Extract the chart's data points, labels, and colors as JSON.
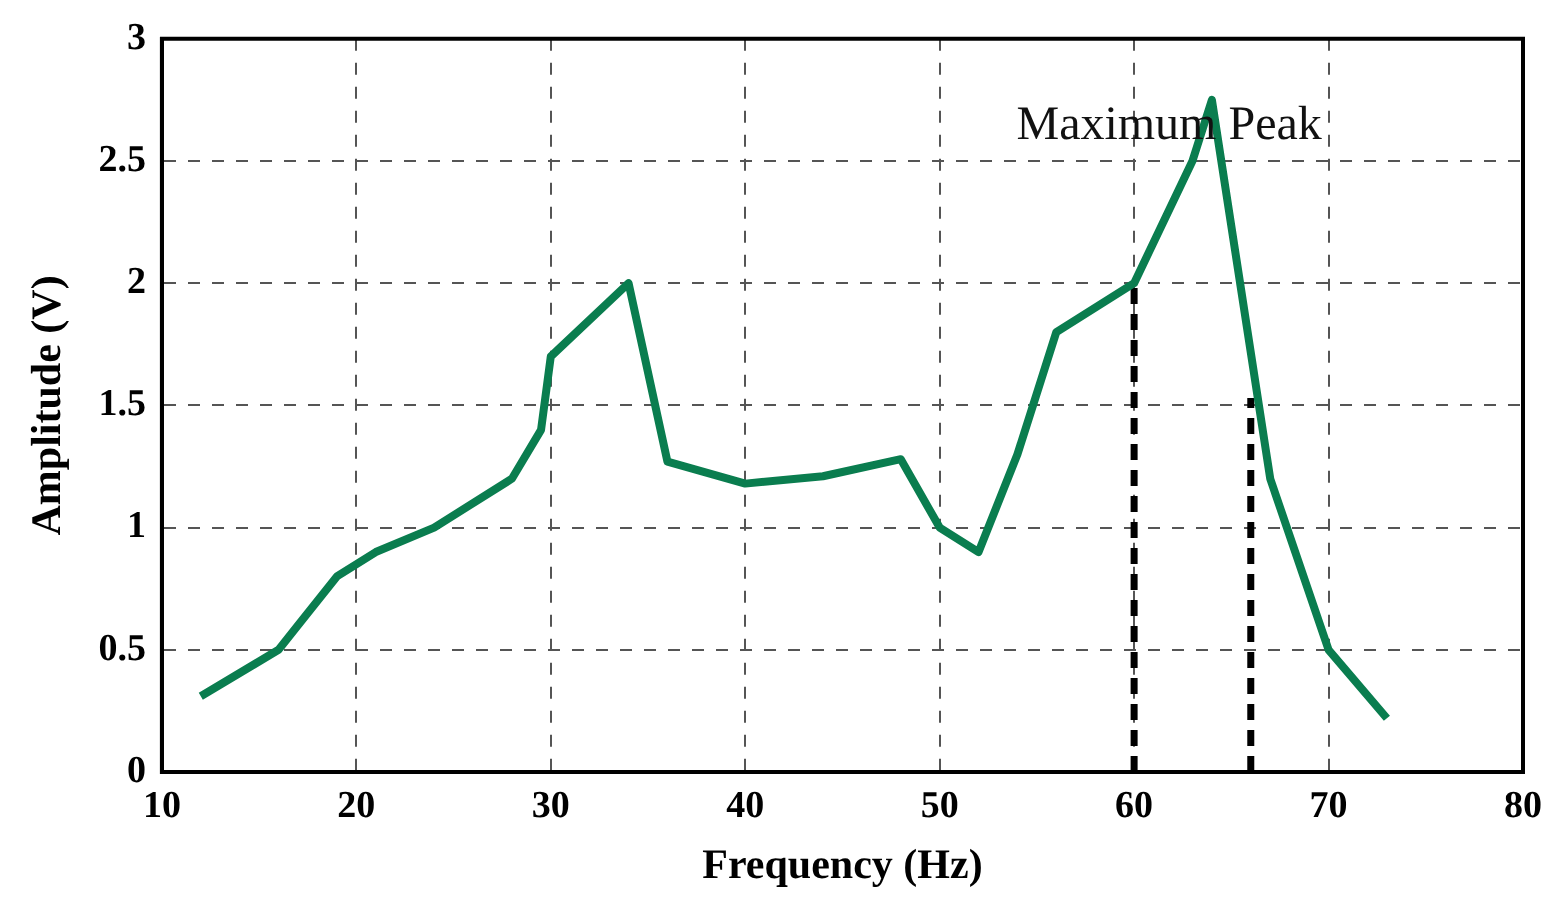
{
  "chart_data": {
    "type": "line",
    "xlabel": "Frequency (Hz)",
    "ylabel": "Amplitude (V)",
    "xlim": [
      10,
      80
    ],
    "xticks": [
      10,
      20,
      30,
      40,
      50,
      60,
      70,
      80
    ],
    "ylim": [
      0,
      3
    ],
    "yticks": [
      0,
      0.5,
      1,
      1.5,
      2,
      2.5,
      3
    ],
    "grid": true,
    "legend": false,
    "marker": "none",
    "series": [
      {
        "color": "#0a7d4f",
        "line_style": "solid",
        "x": [
          12,
          16,
          17,
          19,
          21,
          24,
          28,
          29.5,
          30,
          34,
          36,
          40,
          44,
          48,
          50,
          52,
          54,
          56,
          60,
          63,
          64,
          67,
          70,
          73
        ],
        "values": [
          0.31,
          0.5,
          0.6,
          0.8,
          0.9,
          1.0,
          1.2,
          1.4,
          1.7,
          2.0,
          1.27,
          1.18,
          1.21,
          1.28,
          1.0,
          0.9,
          1.3,
          1.8,
          2.0,
          2.5,
          2.75,
          1.2,
          0.5,
          0.22
        ]
      },
      {
        "color": "#000000",
        "line_style": "dashed",
        "x": [
          60,
          60
        ],
        "values": [
          0,
          2.0
        ]
      },
      {
        "color": "#000000",
        "line_style": "dashed",
        "x": [
          66,
          66
        ],
        "values": [
          0,
          1.53
        ]
      }
    ],
    "annotations": [
      "Maximum Peak"
    ]
  }
}
